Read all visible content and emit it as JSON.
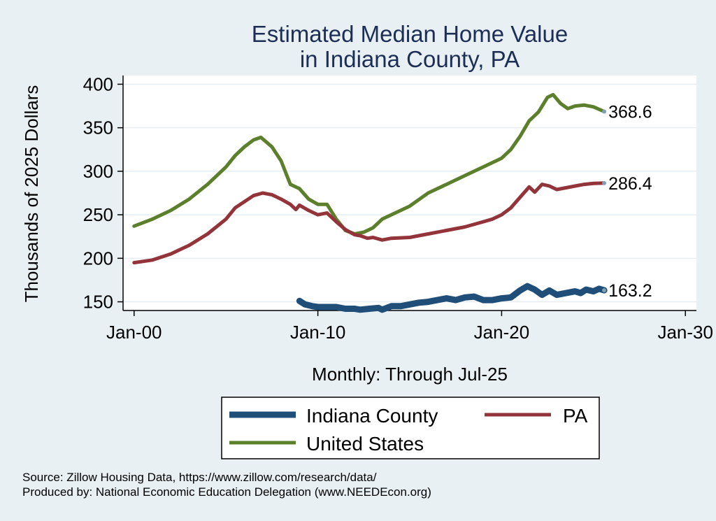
{
  "chart_data": {
    "type": "line",
    "title": [
      "Estimated Median Home Value",
      "in Indiana County, PA"
    ],
    "ylabel": "Thousands of 2025 Dollars",
    "xlabel": "Monthly: Through Jul-25",
    "ylim": [
      140,
      410
    ],
    "xlim": [
      -0.6,
      30.6
    ],
    "yticks": [
      150,
      200,
      250,
      300,
      350,
      400
    ],
    "xticks": [
      {
        "x": 0,
        "label": "Jan-00"
      },
      {
        "x": 10,
        "label": "Jan-10"
      },
      {
        "x": 20,
        "label": "Jan-20"
      },
      {
        "x": 30,
        "label": "Jan-30"
      }
    ],
    "grid": true,
    "legend_position": "bottom",
    "series": [
      {
        "name": "Indiana County",
        "color": "#1f4e79",
        "width": 9,
        "end_label": "163.2",
        "points": [
          [
            9.0,
            151
          ],
          [
            9.3,
            147
          ],
          [
            9.7,
            145
          ],
          [
            10.0,
            144
          ],
          [
            10.5,
            144
          ],
          [
            11.0,
            144
          ],
          [
            11.5,
            142
          ],
          [
            12.0,
            142
          ],
          [
            12.3,
            141
          ],
          [
            12.8,
            142
          ],
          [
            13.3,
            143
          ],
          [
            13.5,
            141
          ],
          [
            14.0,
            145
          ],
          [
            14.5,
            145
          ],
          [
            15.0,
            147
          ],
          [
            15.5,
            149
          ],
          [
            16.0,
            150
          ],
          [
            16.5,
            152
          ],
          [
            17.0,
            154
          ],
          [
            17.5,
            152
          ],
          [
            18.0,
            155
          ],
          [
            18.5,
            156
          ],
          [
            19.0,
            152
          ],
          [
            19.5,
            152
          ],
          [
            20.0,
            154
          ],
          [
            20.5,
            155
          ],
          [
            21.0,
            163
          ],
          [
            21.4,
            168
          ],
          [
            21.8,
            164
          ],
          [
            22.2,
            158
          ],
          [
            22.6,
            163
          ],
          [
            23.0,
            158
          ],
          [
            23.5,
            160
          ],
          [
            24.0,
            162
          ],
          [
            24.3,
            160
          ],
          [
            24.6,
            164
          ],
          [
            25.0,
            162
          ],
          [
            25.3,
            165
          ],
          [
            25.58,
            163.2
          ]
        ]
      },
      {
        "name": "PA",
        "color": "#923439",
        "width": 5,
        "end_label": "286.4",
        "points": [
          [
            0,
            195
          ],
          [
            1,
            198
          ],
          [
            2,
            205
          ],
          [
            3,
            215
          ],
          [
            4,
            228
          ],
          [
            5,
            245
          ],
          [
            5.5,
            258
          ],
          [
            6.0,
            265
          ],
          [
            6.5,
            272
          ],
          [
            7.0,
            275
          ],
          [
            7.5,
            273
          ],
          [
            8.0,
            268
          ],
          [
            8.5,
            262
          ],
          [
            8.8,
            256
          ],
          [
            9.0,
            261
          ],
          [
            9.5,
            255
          ],
          [
            10.0,
            250
          ],
          [
            10.5,
            252
          ],
          [
            11.0,
            242
          ],
          [
            11.5,
            233
          ],
          [
            12.0,
            227
          ],
          [
            12.3,
            226
          ],
          [
            12.7,
            223
          ],
          [
            13.0,
            224
          ],
          [
            13.5,
            221
          ],
          [
            14.0,
            223
          ],
          [
            15.0,
            224
          ],
          [
            16.0,
            228
          ],
          [
            17.0,
            232
          ],
          [
            18.0,
            236
          ],
          [
            19.0,
            242
          ],
          [
            19.5,
            245
          ],
          [
            20.0,
            250
          ],
          [
            20.5,
            258
          ],
          [
            21.0,
            270
          ],
          [
            21.5,
            282
          ],
          [
            21.8,
            276
          ],
          [
            22.2,
            285
          ],
          [
            22.6,
            283
          ],
          [
            23.0,
            279
          ],
          [
            23.5,
            281
          ],
          [
            24.0,
            283
          ],
          [
            24.5,
            285
          ],
          [
            25.0,
            286
          ],
          [
            25.58,
            286.4
          ]
        ]
      },
      {
        "name": "United States",
        "color": "#5b7f2b",
        "width": 5,
        "end_label": "368.6",
        "points": [
          [
            0,
            237
          ],
          [
            1,
            245
          ],
          [
            2,
            255
          ],
          [
            3,
            268
          ],
          [
            4,
            285
          ],
          [
            5,
            305
          ],
          [
            5.5,
            318
          ],
          [
            6.0,
            328
          ],
          [
            6.5,
            336
          ],
          [
            6.9,
            339
          ],
          [
            7.5,
            328
          ],
          [
            8.0,
            312
          ],
          [
            8.5,
            285
          ],
          [
            9.0,
            280
          ],
          [
            9.5,
            268
          ],
          [
            10.0,
            262
          ],
          [
            10.5,
            262
          ],
          [
            11.0,
            245
          ],
          [
            11.5,
            232
          ],
          [
            12.0,
            228
          ],
          [
            12.5,
            230
          ],
          [
            13.0,
            235
          ],
          [
            13.5,
            245
          ],
          [
            14.0,
            250
          ],
          [
            15.0,
            260
          ],
          [
            16.0,
            275
          ],
          [
            17.0,
            285
          ],
          [
            18.0,
            295
          ],
          [
            19.0,
            305
          ],
          [
            20.0,
            315
          ],
          [
            20.5,
            325
          ],
          [
            21.0,
            340
          ],
          [
            21.5,
            358
          ],
          [
            22.0,
            368
          ],
          [
            22.5,
            385
          ],
          [
            22.8,
            388
          ],
          [
            23.2,
            378
          ],
          [
            23.6,
            372
          ],
          [
            24.0,
            375
          ],
          [
            24.5,
            376
          ],
          [
            25.0,
            374
          ],
          [
            25.58,
            368.6
          ]
        ]
      }
    ]
  },
  "legend": {
    "items": [
      {
        "label": "Indiana County",
        "color": "#1f4e79"
      },
      {
        "label": "PA",
        "color": "#923439"
      },
      {
        "label": "United States",
        "color": "#5b7f2b"
      }
    ]
  },
  "footer": {
    "source": "Source: Zillow Housing Data, https://www.zillow.com/research/data/",
    "produced": "Produced by: National Economic Education Delegation (www.NEEDEcon.org)"
  }
}
